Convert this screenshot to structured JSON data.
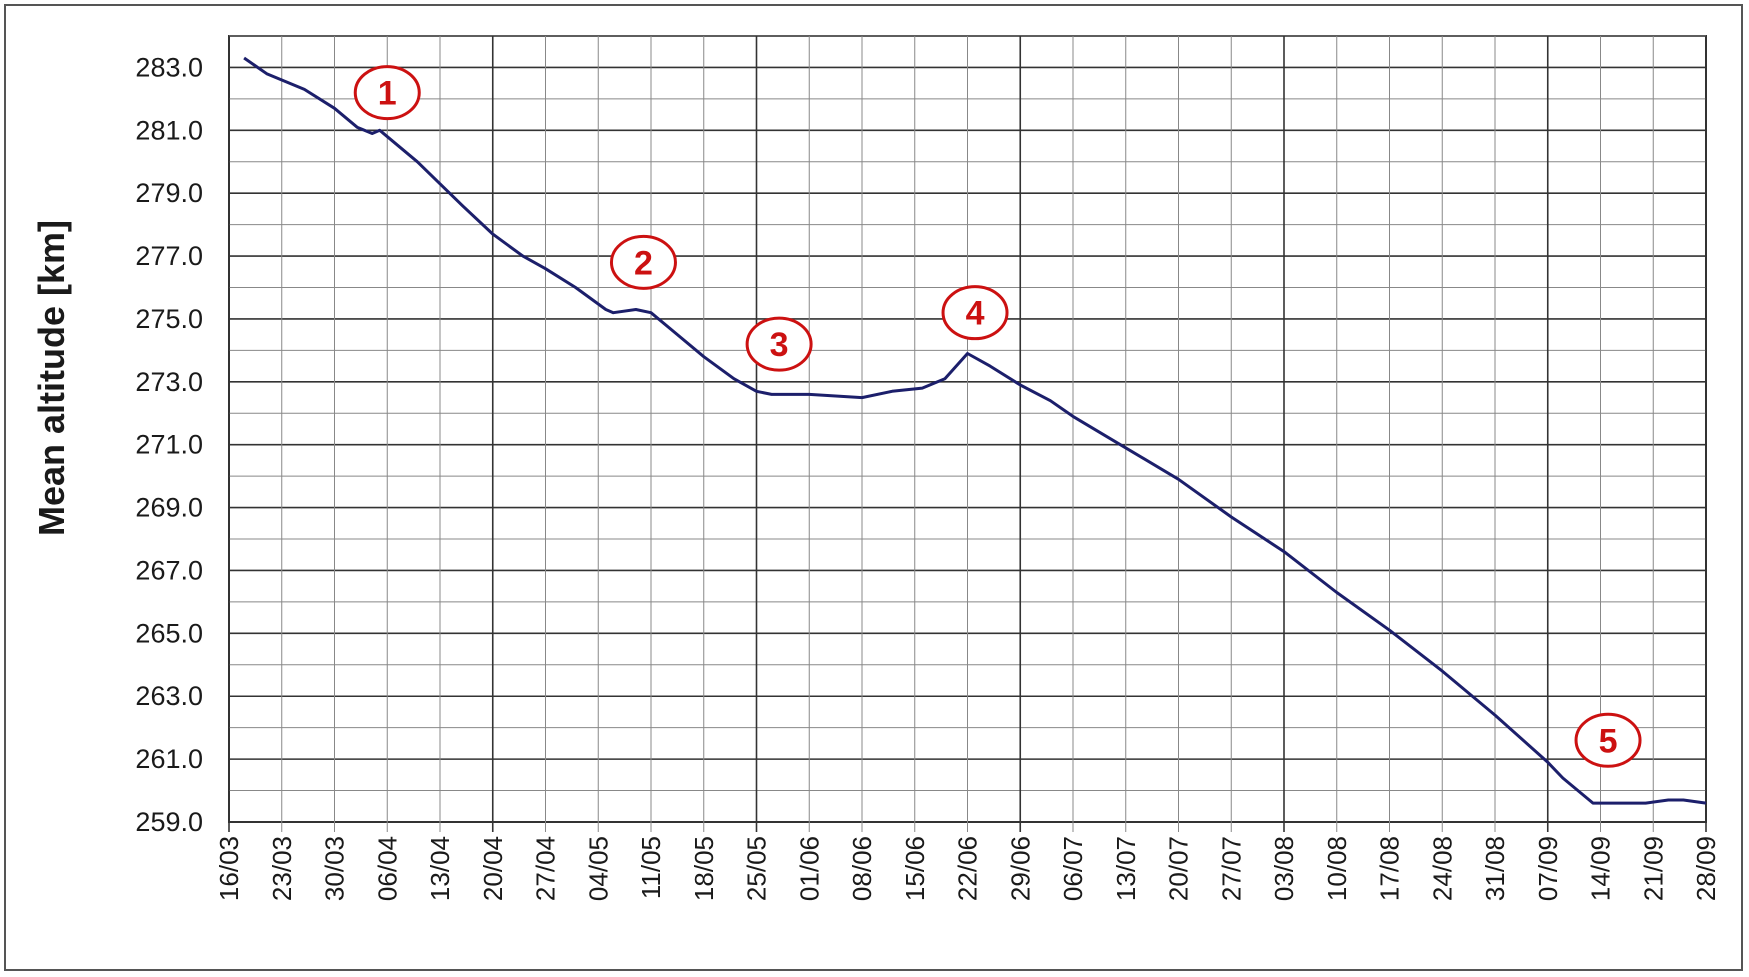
{
  "chart_data": {
    "type": "line",
    "title": "",
    "xlabel": "",
    "ylabel": "Mean altitude [km]",
    "ylim": [
      259.0,
      284.0
    ],
    "y_ticks": [
      "259.0",
      "261.0",
      "263.0",
      "265.0",
      "267.0",
      "269.0",
      "271.0",
      "273.0",
      "275.0",
      "277.0",
      "279.0",
      "281.0",
      "283.0"
    ],
    "x_tick_labels": [
      "16/03",
      "23/03",
      "30/03",
      "06/04",
      "13/04",
      "20/04",
      "27/04",
      "04/05",
      "11/05",
      "18/05",
      "25/05",
      "01/06",
      "08/06",
      "15/06",
      "22/06",
      "29/06",
      "06/07",
      "13/07",
      "20/07",
      "27/07",
      "03/08",
      "10/08",
      "17/08",
      "24/08",
      "31/08",
      "07/09",
      "14/09",
      "21/09",
      "28/09"
    ],
    "grid": true,
    "line_color": "#1c1f6b",
    "marker_color": "#cc1111",
    "series": [
      {
        "x": [
          "18/03",
          "21/03",
          "26/03",
          "30/03",
          "02/04",
          "04/04",
          "05/04",
          "10/04",
          "13/04",
          "16/04",
          "20/04",
          "24/04",
          "27/04",
          "01/05",
          "05/05",
          "06/05",
          "09/05",
          "11/05",
          "14/05",
          "18/05",
          "22/05",
          "25/05",
          "27/05",
          "01/06",
          "08/06",
          "12/06",
          "16/06",
          "19/06",
          "22/06",
          "25/06",
          "29/06",
          "03/07",
          "06/07",
          "13/07",
          "20/07",
          "27/07",
          "03/08",
          "10/08",
          "17/08",
          "24/08",
          "31/08",
          "07/09",
          "09/09",
          "13/09",
          "18/09",
          "20/09",
          "23/09",
          "25/09",
          "28/09"
        ],
        "y": [
          283.3,
          282.8,
          282.3,
          281.7,
          281.1,
          280.9,
          281.0,
          280.0,
          279.3,
          278.6,
          277.7,
          277.0,
          276.6,
          276.0,
          275.3,
          275.2,
          275.3,
          275.2,
          274.6,
          273.8,
          273.1,
          272.7,
          272.6,
          272.6,
          272.5,
          272.7,
          272.8,
          273.1,
          273.9,
          273.5,
          272.9,
          272.4,
          271.9,
          270.9,
          269.9,
          268.7,
          267.6,
          266.3,
          265.1,
          263.8,
          262.4,
          260.9,
          260.4,
          259.6,
          259.6,
          259.6,
          259.7,
          259.7,
          259.6
        ]
      }
    ],
    "annotations": [
      {
        "label": "1",
        "x": "06/04",
        "y": 282.2
      },
      {
        "label": "2",
        "x": "10/05",
        "y": 276.8
      },
      {
        "label": "3",
        "x": "28/05",
        "y": 274.2
      },
      {
        "label": "4",
        "x": "23/06",
        "y": 275.2
      },
      {
        "label": "5",
        "x": "15/09",
        "y": 261.6
      }
    ]
  }
}
